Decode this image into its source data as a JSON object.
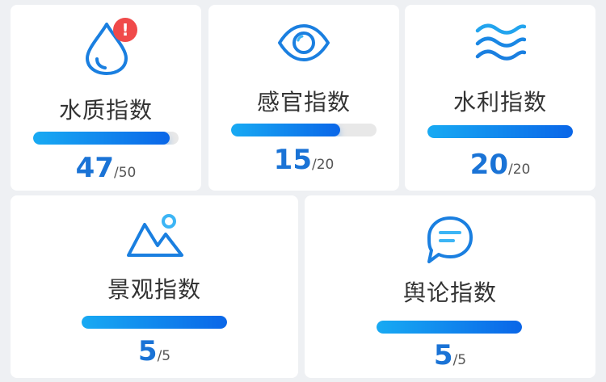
{
  "accent_color": "#1a73d6",
  "bar_gradient": [
    "#18aaf3",
    "#0a66e8"
  ],
  "badge_color": "#f04a4a",
  "cards": [
    {
      "icon": "water-drop-icon",
      "title": "水质指数",
      "score": "47",
      "total": "/50",
      "progress": 0.94,
      "badge": "!"
    },
    {
      "icon": "eye-icon",
      "title": "感官指数",
      "score": "15",
      "total": "/20",
      "progress": 0.75
    },
    {
      "icon": "waves-icon",
      "title": "水利指数",
      "score": "20",
      "total": "/20",
      "progress": 1.0
    },
    {
      "icon": "mountain-icon",
      "title": "景观指数",
      "score": "5",
      "total": "/5",
      "progress": 1.0
    },
    {
      "icon": "chat-bubble-icon",
      "title": "舆论指数",
      "score": "5",
      "total": "/5",
      "progress": 1.0
    }
  ]
}
